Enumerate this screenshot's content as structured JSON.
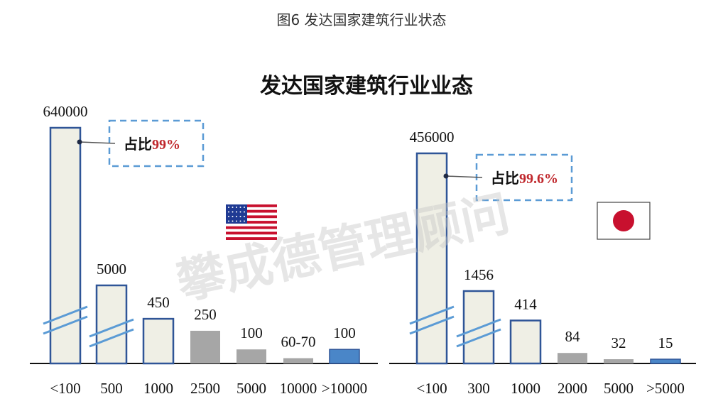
{
  "caption": "图6 发达国家建筑行业状态",
  "watermark": "攀成德管理顾问",
  "colors": {
    "bar_fill": "#efefe5",
    "bar_stroke": "#2f5597",
    "bar_gray": "#a6a6a6",
    "bar_blue": "#4a86c8",
    "break_line": "#5b9bd5",
    "callout_border": "#5b9bd5",
    "pct_red": "#c0282d",
    "flag_us_red": "#c8102e",
    "flag_us_blue": "#1f3a93",
    "flag_jp_red": "#c8102e"
  },
  "chart_data": [
    {
      "type": "bar",
      "title": "发达国家建筑行业业态",
      "country_icon": "us-flag-icon",
      "categories": [
        "<100",
        "500",
        "1000",
        "2500",
        "5000",
        "10000",
        ">10000"
      ],
      "value_labels": [
        "640000",
        "5000",
        "450",
        "250",
        "100",
        "60-70",
        "100"
      ],
      "values": [
        640000,
        5000,
        450,
        250,
        100,
        65,
        100
      ],
      "axis_break_bars": [
        0,
        1
      ],
      "callout": {
        "prefix": "占比",
        "value": "99%"
      }
    },
    {
      "type": "bar",
      "country_icon": "japan-flag-icon",
      "categories": [
        "<100",
        "300",
        "1000",
        "2000",
        "5000",
        ">5000"
      ],
      "value_labels": [
        "456000",
        "1456",
        "414",
        "84",
        "32",
        "15"
      ],
      "values": [
        456000,
        1456,
        414,
        84,
        32,
        15
      ],
      "axis_break_bars": [
        0,
        1
      ],
      "callout": {
        "prefix": "占比",
        "value": "99.6%"
      }
    }
  ]
}
